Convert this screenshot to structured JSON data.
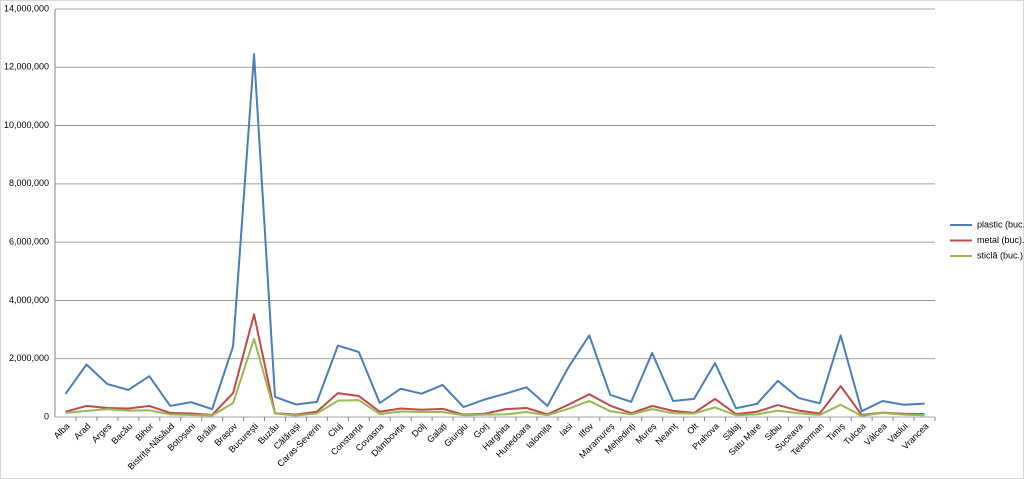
{
  "chart_data": {
    "type": "line",
    "categories": [
      "Alba",
      "Arad",
      "Arges",
      "Bacău",
      "Bihor",
      "Bistrița-Năsăud",
      "Botoșani",
      "Brăila",
      "Brașov",
      "București",
      "Buzău",
      "Călărași",
      "Caras-Severin",
      "Cluj",
      "Constanța",
      "Covasna",
      "Dâmbovița",
      "Dolj",
      "Galați",
      "Giurgiu",
      "Gorj",
      "Harghita",
      "Hunedoara",
      "Ialomița",
      "Iasi",
      "Ilfov",
      "Maramureș",
      "Mehedinți",
      "Mureș",
      "Neamț",
      "Olt",
      "Prahova",
      "Sălaj",
      "Satu Mare",
      "Sibiu",
      "Suceava",
      "Teleorman",
      "Timiș",
      "Tulcea",
      "Vâlcea",
      "Vaslui",
      "Vrancea"
    ],
    "series": [
      {
        "name": "plastic (buc.)",
        "color": "#4a7ebb",
        "values": [
          790000,
          1800000,
          1130000,
          930000,
          1400000,
          380000,
          510000,
          270000,
          2430000,
          12450000,
          690000,
          430000,
          520000,
          2450000,
          2230000,
          480000,
          970000,
          800000,
          1100000,
          340000,
          600000,
          800000,
          1020000,
          380000,
          1700000,
          2800000,
          760000,
          520000,
          2200000,
          550000,
          620000,
          1850000,
          300000,
          450000,
          1240000,
          650000,
          470000,
          2800000,
          200000,
          550000,
          420000,
          460000
        ]
      },
      {
        "name": "metal (buc).",
        "color": "#be4b48",
        "values": [
          180000,
          380000,
          310000,
          290000,
          380000,
          140000,
          120000,
          70000,
          820000,
          3520000,
          130000,
          80000,
          180000,
          820000,
          720000,
          180000,
          290000,
          250000,
          280000,
          80000,
          110000,
          270000,
          310000,
          90000,
          420000,
          780000,
          390000,
          130000,
          380000,
          210000,
          140000,
          620000,
          100000,
          180000,
          410000,
          220000,
          120000,
          1060000,
          70000,
          150000,
          110000,
          100000
        ]
      },
      {
        "name": "sticlă (buc.)",
        "color": "#98b954",
        "values": [
          140000,
          210000,
          270000,
          220000,
          230000,
          90000,
          70000,
          50000,
          480000,
          2680000,
          120000,
          50000,
          120000,
          560000,
          580000,
          100000,
          190000,
          170000,
          170000,
          60000,
          80000,
          90000,
          170000,
          60000,
          280000,
          550000,
          200000,
          90000,
          270000,
          130000,
          120000,
          330000,
          60000,
          90000,
          220000,
          130000,
          70000,
          420000,
          40000,
          140000,
          80000,
          60000
        ]
      }
    ],
    "ylim": [
      0,
      14000000
    ],
    "yticks": [
      0,
      {
        "value": 2000000,
        "label": "2,000,000"
      },
      {
        "value": 4000000,
        "label": "4,000,000"
      },
      {
        "value": 6000000,
        "label": "6,000,000"
      },
      {
        "value": 8000000,
        "label": "8,000,000"
      },
      {
        "value": 10000000,
        "label": "10,000,000"
      },
      {
        "value": 12000000,
        "label": "12,000,000"
      },
      {
        "value": 14000000,
        "label": "14,000,000"
      }
    ],
    "grid": true,
    "legend": "right"
  }
}
